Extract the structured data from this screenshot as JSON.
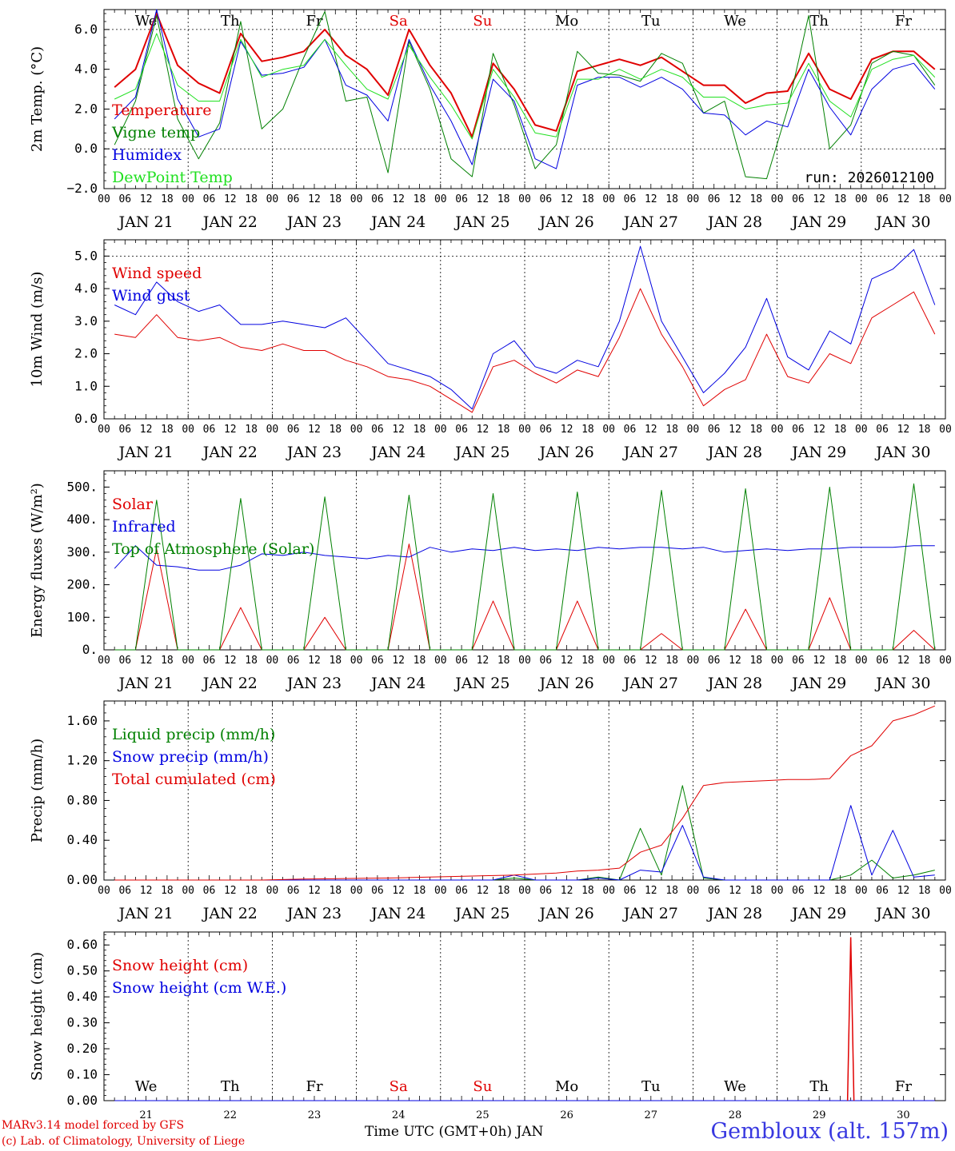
{
  "days": {
    "dates": [
      "21",
      "22",
      "23",
      "24",
      "25",
      "26",
      "27",
      "28",
      "29",
      "30"
    ],
    "month": "JAN",
    "date_labels": [
      "JAN 21",
      "JAN 22",
      "JAN 23",
      "JAN 24",
      "JAN 25",
      "JAN 26",
      "JAN 27",
      "JAN 28",
      "JAN 29",
      "JAN 30"
    ],
    "weekdays": [
      "We",
      "Th",
      "Fr",
      "Sa",
      "Su",
      "Mo",
      "Tu",
      "We",
      "Th",
      "Fr"
    ],
    "weekend_flags": [
      false,
      false,
      false,
      true,
      true,
      false,
      false,
      false,
      false,
      false
    ],
    "hour_ticks": [
      "00",
      "06",
      "12",
      "18"
    ],
    "final_tick": "00"
  },
  "colors": {
    "red": "#e00000",
    "green": "#008000",
    "blue": "#0000e0",
    "lightgreen": "#20e020",
    "station": "#3838e0"
  },
  "chart_data": [
    {
      "type": "line",
      "id": "temperature",
      "ylabel": "2m Temp. (°C)",
      "ylim": [
        -2.0,
        7.0
      ],
      "yticks": [
        -2.0,
        0.0,
        2.0,
        4.0,
        6.0
      ],
      "ytick_labels": [
        "−2.0",
        "0.0",
        "2.0",
        "4.0",
        "6.0"
      ],
      "dashed_y": [
        0.0,
        6.0
      ],
      "annotation": "run: 2026012100",
      "x_step_hours": 6,
      "series": [
        {
          "name": "Temperature",
          "color": "red",
          "width": 2,
          "values": [
            3.1,
            4.0,
            6.8,
            4.2,
            3.3,
            2.8,
            5.8,
            4.4,
            4.6,
            4.9,
            6.0,
            4.7,
            4.0,
            2.7,
            6.0,
            4.2,
            2.8,
            0.6,
            4.3,
            3.0,
            1.2,
            0.9,
            3.9,
            4.2,
            4.5,
            4.2,
            4.6,
            3.9,
            3.2,
            3.2,
            2.3,
            2.8,
            2.9,
            4.8,
            3.0,
            2.5,
            4.5,
            4.9,
            4.9,
            4.0
          ]
        },
        {
          "name": "Vigne temp",
          "color": "green",
          "width": 1,
          "values": [
            0.2,
            2.4,
            6.7,
            1.5,
            -0.5,
            1.3,
            6.4,
            1.0,
            2.0,
            4.6,
            6.9,
            2.4,
            2.6,
            -1.2,
            5.4,
            3.0,
            -0.5,
            -1.4,
            4.8,
            2.2,
            -1.0,
            0.2,
            4.9,
            3.8,
            3.7,
            3.4,
            4.8,
            4.3,
            1.8,
            2.4,
            -1.4,
            -1.5,
            2.0,
            6.7,
            0.0,
            1.2,
            4.3,
            4.9,
            4.7,
            3.2
          ]
        },
        {
          "name": "Humidex",
          "color": "blue",
          "width": 1,
          "values": [
            1.5,
            2.6,
            7.0,
            2.5,
            0.6,
            1.0,
            5.4,
            3.7,
            3.8,
            4.1,
            5.5,
            3.2,
            2.7,
            1.4,
            5.5,
            3.2,
            1.4,
            -0.8,
            3.5,
            2.4,
            -0.5,
            -1.0,
            3.2,
            3.6,
            3.6,
            3.1,
            3.6,
            3.0,
            1.8,
            1.7,
            0.7,
            1.4,
            1.1,
            4.0,
            2.1,
            0.7,
            3.0,
            4.0,
            4.3,
            3.0
          ]
        },
        {
          "name": "DewPoint Temp",
          "color": "lightgreen",
          "width": 1,
          "values": [
            2.5,
            3.0,
            5.8,
            3.2,
            2.4,
            2.4,
            5.5,
            3.6,
            4.0,
            4.2,
            5.5,
            4.2,
            3.0,
            2.5,
            5.2,
            3.6,
            2.2,
            0.5,
            4.0,
            2.6,
            0.8,
            0.6,
            3.5,
            3.5,
            4.0,
            3.5,
            4.0,
            3.6,
            2.6,
            2.6,
            2.0,
            2.2,
            2.3,
            4.3,
            2.4,
            1.6,
            4.0,
            4.5,
            4.7,
            3.6
          ]
        }
      ]
    },
    {
      "type": "line",
      "id": "wind",
      "ylabel": "10m Wind (m/s)",
      "ylim": [
        0.0,
        5.5
      ],
      "yticks": [
        0.0,
        1.0,
        2.0,
        3.0,
        4.0,
        5.0
      ],
      "ytick_labels": [
        "0.0",
        "1.0",
        "2.0",
        "3.0",
        "4.0",
        "5.0"
      ],
      "dashed_y": [
        5.0
      ],
      "x_step_hours": 6,
      "series": [
        {
          "name": "Wind speed",
          "color": "red",
          "width": 1,
          "values": [
            2.6,
            2.5,
            3.2,
            2.5,
            2.4,
            2.5,
            2.2,
            2.1,
            2.3,
            2.1,
            2.1,
            1.8,
            1.6,
            1.3,
            1.2,
            1.0,
            0.6,
            0.2,
            1.6,
            1.8,
            1.4,
            1.1,
            1.5,
            1.3,
            2.5,
            4.0,
            2.6,
            1.6,
            0.4,
            0.9,
            1.2,
            2.6,
            1.3,
            1.1,
            2.0,
            1.7,
            3.1,
            3.5,
            3.9,
            2.6
          ]
        },
        {
          "name": "Wind gust",
          "color": "blue",
          "width": 1,
          "values": [
            3.5,
            3.2,
            4.2,
            3.6,
            3.3,
            3.5,
            2.9,
            2.9,
            3.0,
            2.9,
            2.8,
            3.1,
            2.4,
            1.7,
            1.5,
            1.3,
            0.9,
            0.3,
            2.0,
            2.4,
            1.6,
            1.4,
            1.8,
            1.6,
            3.0,
            5.3,
            3.0,
            1.9,
            0.8,
            1.4,
            2.2,
            3.7,
            1.9,
            1.5,
            2.7,
            2.3,
            4.3,
            4.6,
            5.2,
            3.5
          ]
        }
      ]
    },
    {
      "type": "line",
      "id": "energy",
      "ylabel": "Energy fluxes (W/m²)",
      "ylim": [
        0,
        550
      ],
      "yticks": [
        0,
        100,
        200,
        300,
        400,
        500
      ],
      "ytick_labels": [
        "0.",
        "100.",
        "200.",
        "300.",
        "400.",
        "500."
      ],
      "dashed_y": [],
      "x_step_hours": 6,
      "series": [
        {
          "name": "Solar",
          "color": "red",
          "width": 1,
          "values": [
            0,
            0,
            310,
            0,
            0,
            0,
            130,
            0,
            0,
            0,
            100,
            0,
            0,
            0,
            325,
            0,
            0,
            0,
            150,
            0,
            0,
            0,
            150,
            0,
            0,
            0,
            50,
            0,
            0,
            0,
            125,
            0,
            0,
            0,
            160,
            0,
            0,
            0,
            60,
            0
          ]
        },
        {
          "name": "Infrared",
          "color": "blue",
          "width": 1,
          "values": [
            250,
            320,
            260,
            255,
            245,
            245,
            260,
            295,
            290,
            300,
            290,
            285,
            280,
            290,
            285,
            315,
            300,
            310,
            305,
            315,
            305,
            310,
            305,
            315,
            310,
            315,
            315,
            310,
            315,
            300,
            305,
            310,
            305,
            310,
            310,
            315,
            315,
            315,
            320,
            320
          ]
        },
        {
          "name": "Top of Atmosphere (Solar)",
          "color": "green",
          "width": 1,
          "values": [
            0,
            0,
            460,
            0,
            0,
            0,
            465,
            0,
            0,
            0,
            470,
            0,
            0,
            0,
            475,
            0,
            0,
            0,
            480,
            0,
            0,
            0,
            485,
            0,
            0,
            0,
            490,
            0,
            0,
            0,
            495,
            0,
            0,
            0,
            500,
            0,
            0,
            0,
            510,
            0
          ]
        }
      ]
    },
    {
      "type": "line",
      "id": "precip",
      "ylabel": "Precip (mm/h)",
      "ylim": [
        0.0,
        1.8
      ],
      "yticks": [
        0.0,
        0.4,
        0.8,
        1.2,
        1.6
      ],
      "ytick_labels": [
        "0.00",
        "0.40",
        "0.80",
        "1.20",
        "1.60"
      ],
      "dashed_y": [],
      "x_step_hours": 6,
      "series": [
        {
          "name": "Liquid precip (mm/h)",
          "color": "green",
          "width": 1,
          "values": [
            0,
            0,
            0,
            0,
            0,
            0,
            0,
            0,
            0,
            0,
            0,
            0,
            0,
            0,
            0,
            0,
            0,
            0,
            0,
            0.02,
            0,
            0,
            0,
            0.03,
            0,
            0.52,
            0.05,
            0.95,
            0.02,
            0,
            0,
            0,
            0,
            0,
            0,
            0.05,
            0.2,
            0.02,
            0.05,
            0.1
          ]
        },
        {
          "name": "Snow precip (mm/h)",
          "color": "blue",
          "width": 1,
          "values": [
            0,
            0,
            0,
            0,
            0,
            0,
            0,
            0,
            0,
            0,
            0,
            0,
            0,
            0,
            0,
            0,
            0,
            0,
            0,
            0.05,
            0,
            0,
            0,
            0.02,
            0,
            0.1,
            0.08,
            0.55,
            0.03,
            0,
            0,
            0,
            0,
            0,
            0,
            0.75,
            0.05,
            0.5,
            0.03,
            0.05
          ]
        },
        {
          "name": "Total cumulated (cm)",
          "color": "red",
          "width": 1,
          "values": [
            0,
            0,
            0,
            0,
            0,
            0,
            0,
            0,
            0.005,
            0.01,
            0.012,
            0.015,
            0.018,
            0.02,
            0.025,
            0.03,
            0.035,
            0.04,
            0.045,
            0.05,
            0.06,
            0.07,
            0.09,
            0.1,
            0.12,
            0.28,
            0.35,
            0.62,
            0.95,
            0.98,
            0.99,
            1.0,
            1.01,
            1.01,
            1.02,
            1.25,
            1.35,
            1.6,
            1.66,
            1.75
          ]
        }
      ]
    },
    {
      "type": "line",
      "id": "snow",
      "ylabel": "Snow height (cm)",
      "ylim": [
        0.0,
        0.65
      ],
      "yticks": [
        0.0,
        0.1,
        0.2,
        0.3,
        0.4,
        0.5,
        0.6
      ],
      "ytick_labels": [
        "0.00",
        "0.10",
        "0.20",
        "0.30",
        "0.40",
        "0.50",
        "0.60"
      ],
      "dashed_y": [],
      "x_step_hours": 6,
      "spike": {
        "hour": 213,
        "value": 0.63
      },
      "series": [
        {
          "name": "Snow height (cm)",
          "color": "red",
          "width": 1,
          "values": [
            0,
            0,
            0,
            0,
            0,
            0,
            0,
            0,
            0,
            0,
            0,
            0,
            0,
            0,
            0,
            0,
            0,
            0,
            0,
            0,
            0,
            0,
            0,
            0,
            0,
            0,
            0,
            0,
            0,
            0,
            0,
            0,
            0,
            0,
            0,
            0,
            0,
            0,
            0,
            0
          ]
        },
        {
          "name": "Snow height (cm W.E.)",
          "color": "blue",
          "width": 1,
          "values": [
            0,
            0,
            0,
            0,
            0,
            0,
            0,
            0,
            0,
            0,
            0,
            0,
            0,
            0,
            0,
            0,
            0,
            0,
            0,
            0,
            0,
            0,
            0,
            0,
            0,
            0,
            0,
            0,
            0,
            0,
            0,
            0,
            0,
            0,
            0,
            0,
            0,
            0,
            0,
            0
          ]
        }
      ]
    }
  ],
  "footer": {
    "model_line": "MARv3.14 model forced by GFS",
    "credit_line": "(c) Lab. of Climatology, University of Liege",
    "xlabel": "Time UTC (GMT+0h) JAN",
    "station": "Gembloux (alt. 157m)"
  }
}
